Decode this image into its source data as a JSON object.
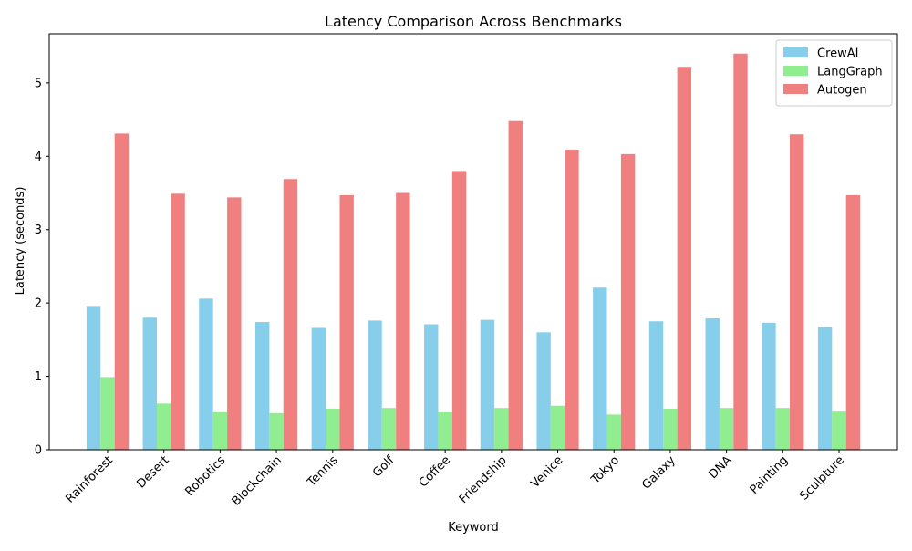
{
  "chart_data": {
    "type": "bar",
    "title": "Latency Comparison Across Benchmarks",
    "xlabel": "Keyword",
    "ylabel": "Latency (seconds)",
    "categories": [
      "Rainforest",
      "Desert",
      "Robotics",
      "Blockchain",
      "Tennis",
      "Golf",
      "Coffee",
      "Friendship",
      "Venice",
      "Tokyo",
      "Galaxy",
      "DNA",
      "Painting",
      "Sculpture"
    ],
    "series": [
      {
        "name": "CrewAI",
        "color": "#87ceeb",
        "values": [
          1.96,
          1.8,
          2.06,
          1.74,
          1.66,
          1.76,
          1.71,
          1.77,
          1.6,
          2.21,
          1.75,
          1.79,
          1.73,
          1.67
        ]
      },
      {
        "name": "LangGraph",
        "color": "#90ee90",
        "values": [
          0.99,
          0.63,
          0.51,
          0.5,
          0.56,
          0.57,
          0.51,
          0.57,
          0.6,
          0.48,
          0.56,
          0.57,
          0.57,
          0.52
        ]
      },
      {
        "name": "Autogen",
        "color": "#f08080",
        "values": [
          4.31,
          3.49,
          3.44,
          3.69,
          3.47,
          3.5,
          3.8,
          4.48,
          4.09,
          4.03,
          5.22,
          5.4,
          4.3,
          3.47
        ]
      }
    ],
    "ylim": [
      0,
      5.67
    ],
    "yticks": [
      0,
      1,
      2,
      3,
      4,
      5
    ],
    "legend_position": "top-right",
    "grid": false
  }
}
